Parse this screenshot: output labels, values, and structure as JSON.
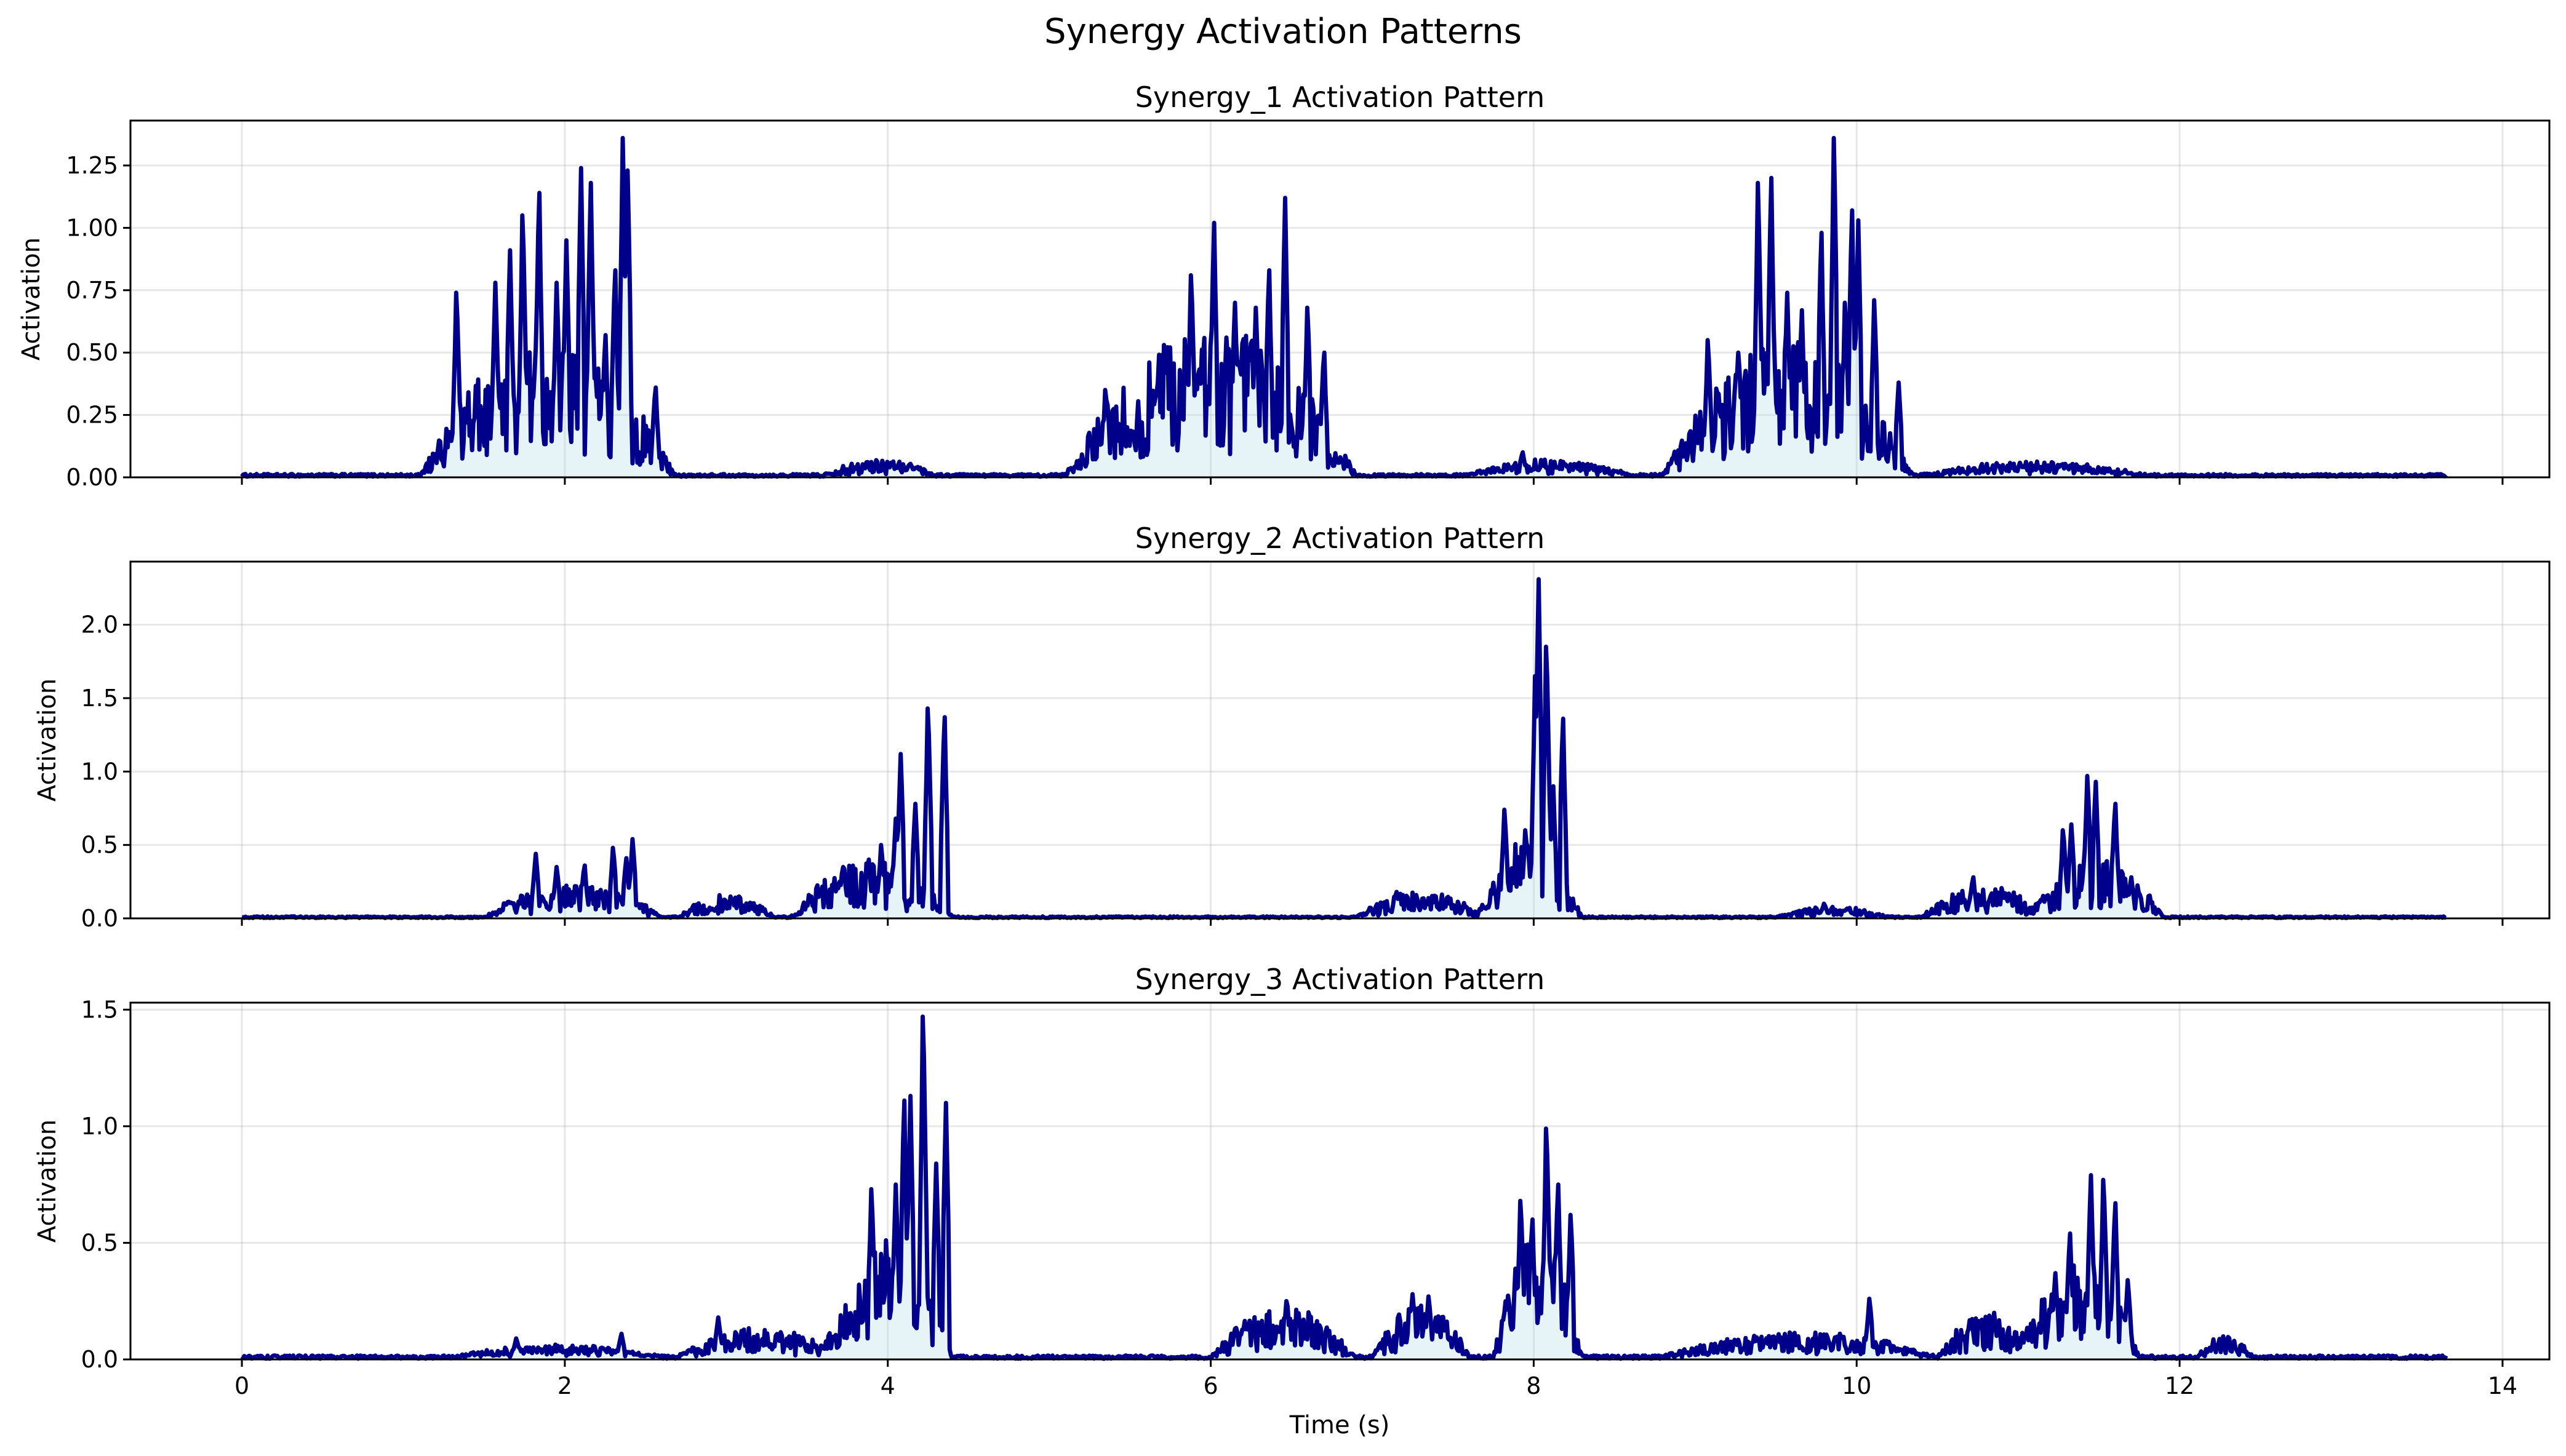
{
  "chart_data": {
    "type": "line",
    "title": "Synergy Activation Patterns",
    "xlabel": "Time (s)",
    "colors": {
      "line": "#00008B",
      "fill": "#add8e6"
    },
    "xlim": [
      -0.69,
      14.29
    ],
    "xticks": [
      0,
      2,
      4,
      6,
      8,
      10,
      12,
      14
    ],
    "xtick_labels": [
      "0",
      "2",
      "4",
      "6",
      "8",
      "10",
      "12",
      "14"
    ],
    "x_end": 13.65,
    "panels": [
      {
        "name": "synergy-1",
        "title": "Synergy_1 Activation Pattern",
        "ylabel": "Activation",
        "ylim": [
          0,
          1.43
        ],
        "yticks": [
          0,
          0.25,
          0.5,
          0.75,
          1.0,
          1.25
        ],
        "ytick_labels": [
          "0.00",
          "0.25",
          "0.50",
          "0.75",
          "1.00",
          "1.25"
        ],
        "baseline": 0.008,
        "bursts": [
          {
            "start": 1.1,
            "end": 2.7,
            "level": 0.3,
            "peaks": [
              [
                1.33,
                0.74
              ],
              [
                1.57,
                0.78
              ],
              [
                1.66,
                0.91
              ],
              [
                1.74,
                1.05
              ],
              [
                1.84,
                1.14
              ],
              [
                1.95,
                0.78
              ],
              [
                2.01,
                0.95
              ],
              [
                2.1,
                1.24
              ],
              [
                2.16,
                1.18
              ],
              [
                2.25,
                0.57
              ],
              [
                2.31,
                0.83
              ],
              [
                2.36,
                1.36
              ],
              [
                2.39,
                1.23
              ],
              [
                2.56,
                0.36
              ]
            ]
          },
          {
            "start": 5.1,
            "end": 6.9,
            "level": 0.33,
            "peaks": [
              [
                5.35,
                0.35
              ],
              [
                5.72,
                0.5
              ],
              [
                5.88,
                0.81
              ],
              [
                6.02,
                1.02
              ],
              [
                6.15,
                0.7
              ],
              [
                6.28,
                0.68
              ],
              [
                6.36,
                0.83
              ],
              [
                6.46,
                1.12
              ],
              [
                6.6,
                0.68
              ],
              [
                6.7,
                0.5
              ]
            ]
          },
          {
            "start": 8.8,
            "end": 10.35,
            "level": 0.3,
            "peaks": [
              [
                9.08,
                0.55
              ],
              [
                9.27,
                0.5
              ],
              [
                9.39,
                1.18
              ],
              [
                9.47,
                1.2
              ],
              [
                9.57,
                0.74
              ],
              [
                9.66,
                0.67
              ],
              [
                9.78,
                0.98
              ],
              [
                9.86,
                1.36
              ],
              [
                9.93,
                0.7
              ],
              [
                9.97,
                1.07
              ],
              [
                10.01,
                1.03
              ],
              [
                10.11,
                0.71
              ],
              [
                10.26,
                0.38
              ]
            ]
          },
          {
            "start": 3.6,
            "end": 4.3,
            "level": 0.035,
            "peaks": []
          },
          {
            "start": 7.6,
            "end": 8.6,
            "level": 0.035,
            "peaks": [
              [
                7.93,
                0.1
              ]
            ]
          },
          {
            "start": 10.4,
            "end": 11.8,
            "level": 0.03,
            "peaks": []
          }
        ]
      },
      {
        "name": "synergy-2",
        "title": "Synergy_2 Activation Pattern",
        "ylabel": "Activation",
        "ylim": [
          0,
          2.43
        ],
        "yticks": [
          0,
          0.5,
          1.0,
          1.5,
          2.0
        ],
        "ytick_labels": [
          "0.0",
          "0.5",
          "1.0",
          "1.5",
          "2.0"
        ],
        "baseline": 0.008,
        "bursts": [
          {
            "start": 1.5,
            "end": 2.6,
            "level": 0.13,
            "peaks": [
              [
                1.82,
                0.44
              ],
              [
                1.95,
                0.35
              ],
              [
                2.12,
                0.36
              ],
              [
                2.3,
                0.48
              ],
              [
                2.38,
                0.41
              ],
              [
                2.42,
                0.54
              ]
            ]
          },
          {
            "start": 2.7,
            "end": 3.3,
            "level": 0.09,
            "peaks": []
          },
          {
            "start": 3.4,
            "end": 4.4,
            "level": 0.22,
            "peaks": [
              [
                3.72,
                0.35
              ],
              [
                3.88,
                0.4
              ],
              [
                3.96,
                0.5
              ],
              [
                4.05,
                0.68
              ],
              [
                4.08,
                1.12
              ],
              [
                4.17,
                0.78
              ],
              [
                4.25,
                1.43
              ],
              [
                4.35,
                1.37
              ]
            ]
          },
          {
            "start": 6.9,
            "end": 7.7,
            "level": 0.1,
            "peaks": [
              [
                7.15,
                0.18
              ]
            ]
          },
          {
            "start": 7.65,
            "end": 8.3,
            "level": 0.3,
            "peaks": [
              [
                7.82,
                0.74
              ],
              [
                7.95,
                0.6
              ],
              [
                8.01,
                1.65
              ],
              [
                8.03,
                2.31
              ],
              [
                8.08,
                1.85
              ],
              [
                8.12,
                0.9
              ],
              [
                8.18,
                1.36
              ]
            ]
          },
          {
            "start": 10.4,
            "end": 11.2,
            "level": 0.12,
            "peaks": [
              [
                10.72,
                0.28
              ]
            ]
          },
          {
            "start": 11.1,
            "end": 11.9,
            "level": 0.22,
            "peaks": [
              [
                11.28,
                0.6
              ],
              [
                11.33,
                0.64
              ],
              [
                11.43,
                0.97
              ],
              [
                11.48,
                0.93
              ],
              [
                11.6,
                0.78
              ],
              [
                11.7,
                0.28
              ]
            ]
          },
          {
            "start": 9.5,
            "end": 10.2,
            "level": 0.04,
            "peaks": [
              [
                9.8,
                0.1
              ]
            ]
          }
        ]
      },
      {
        "name": "synergy-3",
        "title": "Synergy_3 Activation Pattern",
        "ylabel": "Activation",
        "ylim": [
          0,
          1.53
        ],
        "yticks": [
          0,
          0.5,
          1.0,
          1.5
        ],
        "ytick_labels": [
          "0.0",
          "0.5",
          "1.0",
          "1.5"
        ],
        "baseline": 0.01,
        "bursts": [
          {
            "start": 1.3,
            "end": 2.6,
            "level": 0.03,
            "peaks": [
              [
                1.7,
                0.09
              ],
              [
                2.35,
                0.11
              ]
            ]
          },
          {
            "start": 2.7,
            "end": 3.7,
            "level": 0.07,
            "peaks": [
              [
                2.95,
                0.18
              ]
            ]
          },
          {
            "start": 3.6,
            "end": 4.4,
            "level": 0.28,
            "peaks": [
              [
                3.9,
                0.73
              ],
              [
                4.05,
                0.75
              ],
              [
                4.1,
                1.11
              ],
              [
                4.14,
                1.13
              ],
              [
                4.22,
                1.47
              ],
              [
                4.3,
                0.84
              ],
              [
                4.36,
                1.1
              ]
            ]
          },
          {
            "start": 6.0,
            "end": 6.9,
            "level": 0.12,
            "peaks": [
              [
                6.47,
                0.25
              ]
            ]
          },
          {
            "start": 7.0,
            "end": 7.6,
            "level": 0.13,
            "peaks": [
              [
                7.25,
                0.28
              ],
              [
                7.35,
                0.27
              ]
            ]
          },
          {
            "start": 7.75,
            "end": 8.3,
            "level": 0.3,
            "peaks": [
              [
                7.92,
                0.68
              ],
              [
                7.99,
                0.6
              ],
              [
                8.08,
                0.99
              ],
              [
                8.15,
                0.75
              ],
              [
                8.23,
                0.62
              ]
            ]
          },
          {
            "start": 8.8,
            "end": 10.5,
            "level": 0.06,
            "peaks": [
              [
                10.08,
                0.26
              ]
            ]
          },
          {
            "start": 10.5,
            "end": 11.1,
            "level": 0.1,
            "peaks": [
              [
                10.85,
                0.2
              ]
            ]
          },
          {
            "start": 11.0,
            "end": 11.75,
            "level": 0.22,
            "peaks": [
              [
                11.23,
                0.37
              ],
              [
                11.32,
                0.54
              ],
              [
                11.45,
                0.79
              ],
              [
                11.53,
                0.77
              ],
              [
                11.6,
                0.67
              ],
              [
                11.68,
                0.34
              ]
            ]
          },
          {
            "start": 12.1,
            "end": 12.45,
            "level": 0.05,
            "peaks": []
          }
        ]
      }
    ]
  }
}
